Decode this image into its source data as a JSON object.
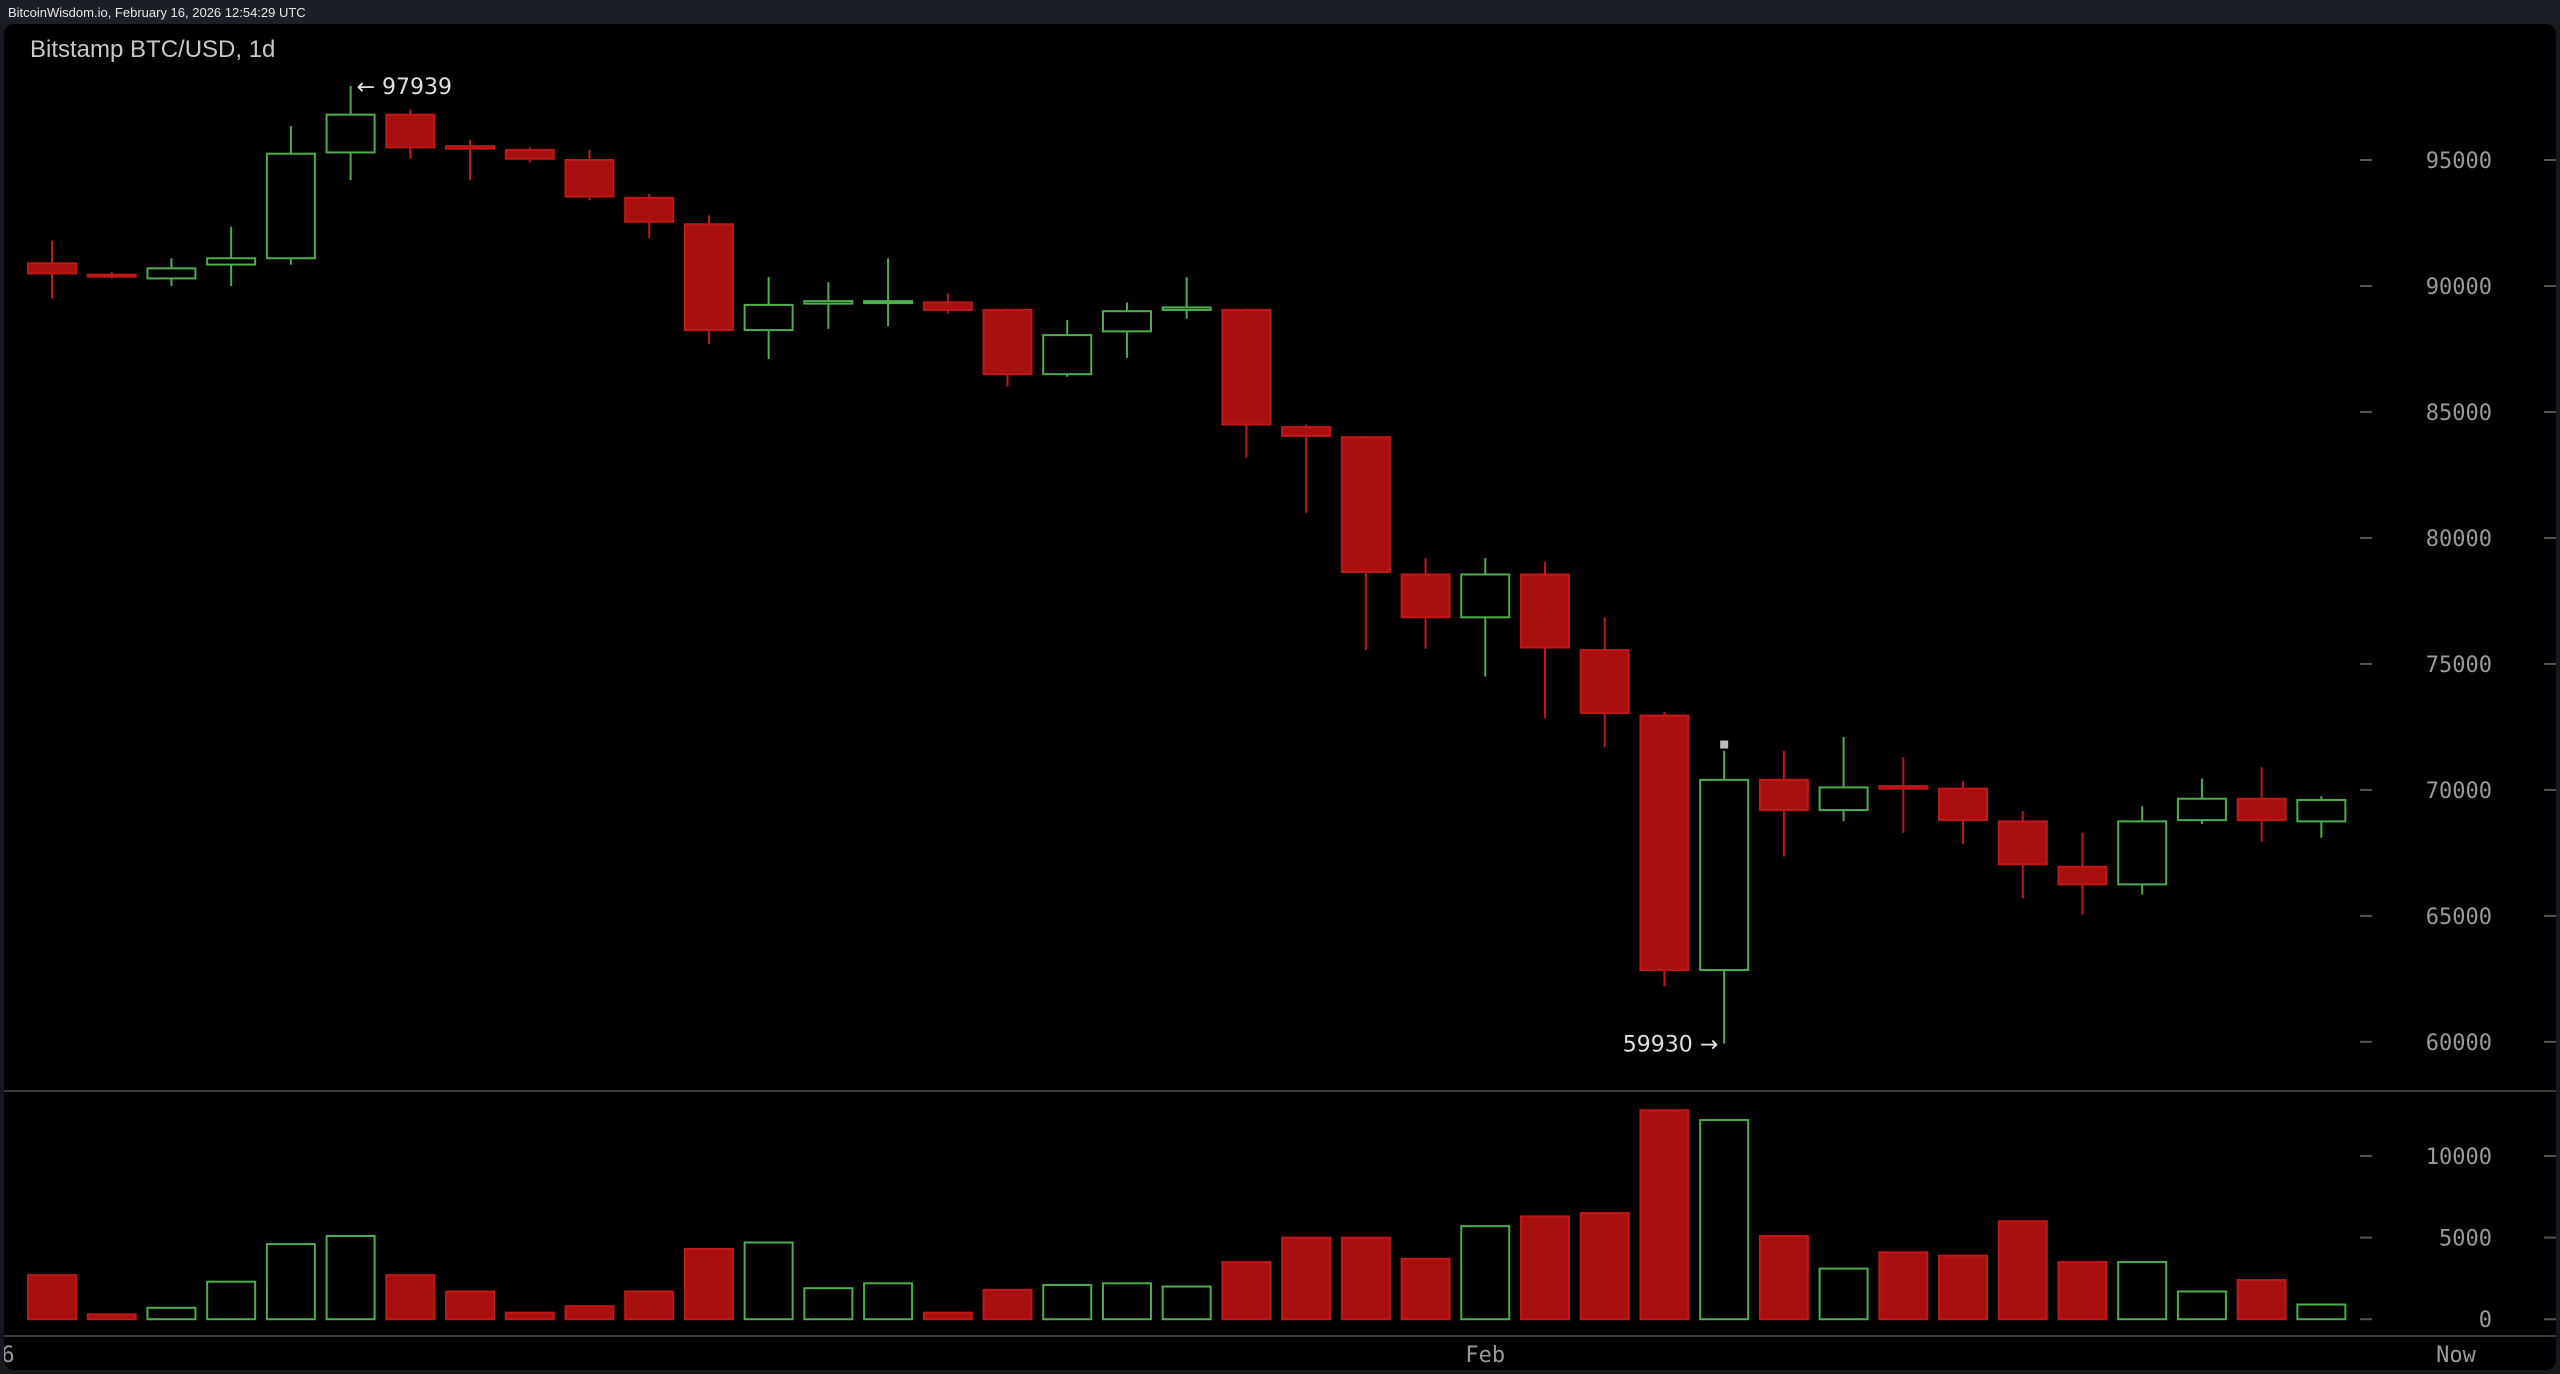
{
  "header": {
    "text": "BitcoinWisdom.io, February 16, 2026 12:54:29 UTC"
  },
  "chart_data": {
    "type": "candlestick",
    "title": "Bitstamp BTC/USD, 1d",
    "colors": {
      "up": "#4cae4c",
      "down": "#a81010",
      "background": "#000000",
      "axis_text": "#9a9a9a"
    },
    "price_axis": {
      "ticks": [
        60000,
        65000,
        70000,
        75000,
        80000,
        85000,
        90000,
        95000
      ],
      "range": [
        57800,
        99400
      ]
    },
    "volume_axis": {
      "ticks": [
        0,
        5000,
        10000
      ],
      "range": [
        0,
        13000
      ]
    },
    "x_labels": [
      {
        "index": 0,
        "label": "6"
      },
      {
        "index": 24,
        "label": "Feb"
      },
      {
        "index": 40,
        "label": "Now"
      }
    ],
    "annotations": {
      "high": "← 97939",
      "low": "59930 →"
    },
    "candles": [
      {
        "o": 90900,
        "h": 91800,
        "l": 89500,
        "c": 90500,
        "v": 2700
      },
      {
        "o": 90450,
        "h": 90550,
        "l": 90300,
        "c": 90400,
        "v": 300
      },
      {
        "o": 90300,
        "h": 91100,
        "l": 90000,
        "c": 90700,
        "v": 700
      },
      {
        "o": 90850,
        "h": 92350,
        "l": 90000,
        "c": 91100,
        "v": 2300
      },
      {
        "o": 91100,
        "h": 96350,
        "l": 90850,
        "c": 95250,
        "v": 4600
      },
      {
        "o": 95300,
        "h": 97939,
        "l": 94200,
        "c": 96800,
        "v": 5100
      },
      {
        "o": 96800,
        "h": 97000,
        "l": 95050,
        "c": 95500,
        "v": 2700
      },
      {
        "o": 95550,
        "h": 95800,
        "l": 94200,
        "c": 95450,
        "v": 1700
      },
      {
        "o": 95400,
        "h": 95500,
        "l": 94900,
        "c": 95050,
        "v": 400
      },
      {
        "o": 95000,
        "h": 95400,
        "l": 93400,
        "c": 93550,
        "v": 800
      },
      {
        "o": 93500,
        "h": 93650,
        "l": 91900,
        "c": 92550,
        "v": 1700
      },
      {
        "o": 92450,
        "h": 92800,
        "l": 87700,
        "c": 88250,
        "v": 4300
      },
      {
        "o": 88250,
        "h": 90350,
        "l": 87100,
        "c": 89250,
        "v": 4700
      },
      {
        "o": 89300,
        "h": 90150,
        "l": 88300,
        "c": 89400,
        "v": 1900
      },
      {
        "o": 89350,
        "h": 91100,
        "l": 88400,
        "c": 89400,
        "v": 2200
      },
      {
        "o": 89350,
        "h": 89700,
        "l": 88900,
        "c": 89050,
        "v": 400
      },
      {
        "o": 89050,
        "h": 89100,
        "l": 86000,
        "c": 86500,
        "v": 1800
      },
      {
        "o": 86500,
        "h": 88650,
        "l": 86400,
        "c": 88050,
        "v": 2100
      },
      {
        "o": 88200,
        "h": 89350,
        "l": 87150,
        "c": 89000,
        "v": 2200
      },
      {
        "o": 89050,
        "h": 90350,
        "l": 88700,
        "c": 89150,
        "v": 2000
      },
      {
        "o": 89050,
        "h": 89100,
        "l": 83200,
        "c": 84500,
        "v": 3500
      },
      {
        "o": 84400,
        "h": 84500,
        "l": 81000,
        "c": 84050,
        "v": 5000
      },
      {
        "o": 84000,
        "h": 84050,
        "l": 75550,
        "c": 78650,
        "v": 5000
      },
      {
        "o": 78550,
        "h": 79200,
        "l": 75600,
        "c": 76850,
        "v": 3700
      },
      {
        "o": 76850,
        "h": 79200,
        "l": 74500,
        "c": 78550,
        "v": 5700
      },
      {
        "o": 78550,
        "h": 79050,
        "l": 72850,
        "c": 75650,
        "v": 6300
      },
      {
        "o": 75550,
        "h": 76850,
        "l": 71700,
        "c": 73050,
        "v": 6500
      },
      {
        "o": 72950,
        "h": 73100,
        "l": 62200,
        "c": 62850,
        "v": 12800
      },
      {
        "o": 62850,
        "h": 71550,
        "l": 59930,
        "c": 70400,
        "v": 12200
      },
      {
        "o": 70400,
        "h": 71550,
        "l": 67350,
        "c": 69200,
        "v": 5100
      },
      {
        "o": 69200,
        "h": 72100,
        "l": 68750,
        "c": 70100,
        "v": 3100
      },
      {
        "o": 70150,
        "h": 71300,
        "l": 68300,
        "c": 70050,
        "v": 4100
      },
      {
        "o": 70050,
        "h": 70350,
        "l": 67850,
        "c": 68800,
        "v": 3900
      },
      {
        "o": 68750,
        "h": 69150,
        "l": 65700,
        "c": 67050,
        "v": 6000
      },
      {
        "o": 66950,
        "h": 68300,
        "l": 65050,
        "c": 66250,
        "v": 3500
      },
      {
        "o": 66250,
        "h": 69350,
        "l": 65850,
        "c": 68750,
        "v": 3500
      },
      {
        "o": 68800,
        "h": 70450,
        "l": 68650,
        "c": 69650,
        "v": 1700
      },
      {
        "o": 69650,
        "h": 70900,
        "l": 67950,
        "c": 68800,
        "v": 2400
      },
      {
        "o": 68750,
        "h": 69750,
        "l": 68100,
        "c": 69600,
        "v": 900
      }
    ]
  }
}
